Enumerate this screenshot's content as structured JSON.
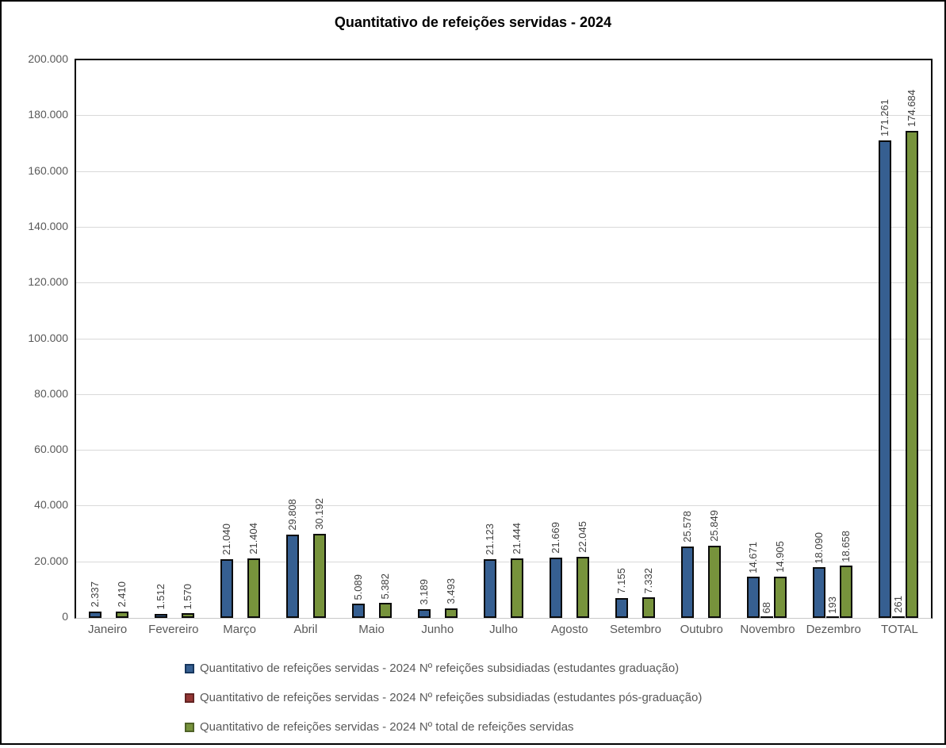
{
  "chart_data": {
    "type": "bar",
    "title": "Quantitativo de refeições servidas - 2024",
    "categories": [
      "Janeiro",
      "Fevereiro",
      "Março",
      "Abril",
      "Maio",
      "Junho",
      "Julho",
      "Agosto",
      "Setembro",
      "Outubro",
      "Novembro",
      "Dezembro",
      "TOTAL"
    ],
    "series": [
      {
        "name": "Quantitativo de refeições servidas - 2024 Nº refeições subsidiadas (estudantes graduação)",
        "color": "#365F91",
        "swatch_border": "#17375E",
        "values": [
          2337,
          1512,
          21040,
          29808,
          5089,
          3189,
          21123,
          21669,
          7155,
          25578,
          14671,
          18090,
          171261
        ],
        "labels": [
          "2.337",
          "1.512",
          "21.040",
          "29.808",
          "5.089",
          "3.189",
          "21.123",
          "21.669",
          "7.155",
          "25.578",
          "14.671",
          "18.090",
          "171.261"
        ]
      },
      {
        "name": "Quantitativo de refeições servidas - 2024 Nº refeições subsidiadas (estudantes pós-graduação)",
        "color": "#943634",
        "swatch_border": "#632423",
        "values": [
          0,
          0,
          0,
          0,
          0,
          0,
          0,
          0,
          0,
          0,
          68,
          193,
          261
        ],
        "labels": [
          "",
          "",
          "",
          "",
          "",
          "",
          "",
          "",
          "",
          "",
          "68",
          "193",
          "261"
        ]
      },
      {
        "name": "Quantitativo de refeições servidas - 2024 Nº total de refeições servidas",
        "color": "#77933C",
        "swatch_border": "#4F6228",
        "values": [
          2410,
          1570,
          21404,
          30192,
          5382,
          3493,
          21444,
          22045,
          7332,
          25849,
          14905,
          18658,
          174684
        ],
        "labels": [
          "2.410",
          "1.570",
          "21.404",
          "30.192",
          "5.382",
          "3.493",
          "21.444",
          "22.045",
          "7.332",
          "25.849",
          "14.905",
          "18.658",
          "174.684"
        ]
      }
    ],
    "ylim": [
      0,
      200000
    ],
    "ytick_step": 20000,
    "ytick_labels": [
      "0",
      "20.000",
      "40.000",
      "60.000",
      "80.000",
      "100.000",
      "120.000",
      "140.000",
      "160.000",
      "180.000",
      "200.000"
    ],
    "grid": true,
    "legend_position": "bottom",
    "bar_outline_color": "#0a0a0a",
    "gridline_color": "#d9d9d9"
  }
}
